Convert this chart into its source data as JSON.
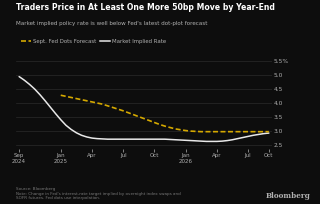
{
  "title": "Traders Price in At Least One More 50bp Move by Year-End",
  "subtitle": "Market implied policy rate is well below Fed's latest dot-plot forecast",
  "background_color": "#0d0d0d",
  "text_color": "#b0b0b0",
  "title_color": "#ffffff",
  "ylim": [
    2.35,
    5.65
  ],
  "yticks": [
    2.5,
    3.0,
    3.5,
    4.0,
    4.5,
    5.0,
    5.5
  ],
  "ytick_labels": [
    "2.5",
    "3.0",
    "3.5",
    "4.0",
    "4.5",
    "5.0",
    "5.5%"
  ],
  "source_text": "Source: Bloomberg\nNote: Change in Fed's interest-rate target implied by overnight index swaps and\nSOFR futures. Fed dots use interpolation.",
  "bloomberg_label": "Bloomberg",
  "legend_items": [
    "Sept. Fed Dots Forecast",
    "Market Implied Rate"
  ],
  "fed_dots_color": "#d4a800",
  "market_implied_color": "#e8e8e8",
  "x_tick_positions": [
    0,
    4,
    7,
    10,
    13,
    16,
    19,
    22,
    24
  ],
  "x_ticklabels": [
    "Sep\n2024",
    "Jan\n2025",
    "Apr",
    "Jul",
    "Oct",
    "Jan\n2026",
    "Apr",
    "Jul",
    "Oct"
  ],
  "market_implied_x": [
    0,
    0.5,
    1,
    1.5,
    2,
    2.5,
    3,
    3.5,
    4,
    4.5,
    5,
    5.5,
    6,
    6.5,
    7,
    7.5,
    8,
    8.5,
    9,
    9.5,
    10,
    10.5,
    11,
    11.5,
    12,
    12.5,
    13,
    13.5,
    14,
    14.5,
    15,
    15.5,
    16,
    16.5,
    17,
    17.5,
    18,
    18.5,
    19,
    19.5,
    20,
    20.5,
    21,
    21.5,
    22,
    22.5,
    23,
    23.5,
    24
  ],
  "market_implied_y": [
    4.95,
    4.82,
    4.67,
    4.5,
    4.3,
    4.08,
    3.85,
    3.62,
    3.4,
    3.2,
    3.05,
    2.93,
    2.84,
    2.78,
    2.74,
    2.72,
    2.71,
    2.7,
    2.7,
    2.7,
    2.7,
    2.7,
    2.7,
    2.7,
    2.7,
    2.7,
    2.7,
    2.7,
    2.7,
    2.69,
    2.68,
    2.67,
    2.66,
    2.65,
    2.64,
    2.63,
    2.62,
    2.62,
    2.62,
    2.63,
    2.65,
    2.68,
    2.72,
    2.76,
    2.8,
    2.84,
    2.87,
    2.9,
    2.92
  ],
  "fed_dots_x": [
    4,
    4.5,
    5,
    5.5,
    6,
    6.5,
    7,
    7.5,
    8,
    8.5,
    9,
    9.5,
    10,
    10.5,
    11,
    11.5,
    12,
    12.5,
    13,
    13.5,
    14,
    14.5,
    15,
    15.5,
    16,
    16.5,
    17,
    17.5,
    18,
    18.5,
    19,
    19.5,
    20,
    20.5,
    21,
    21.5,
    22,
    22.5,
    23,
    23.5,
    24
  ],
  "fed_dots_y": [
    4.28,
    4.24,
    4.2,
    4.16,
    4.12,
    4.08,
    4.04,
    4.0,
    3.96,
    3.9,
    3.84,
    3.78,
    3.72,
    3.65,
    3.58,
    3.51,
    3.44,
    3.37,
    3.3,
    3.23,
    3.17,
    3.12,
    3.07,
    3.04,
    3.01,
    2.99,
    2.98,
    2.97,
    2.97,
    2.97,
    2.97,
    2.97,
    2.97,
    2.97,
    2.97,
    2.97,
    2.97,
    2.97,
    2.97,
    2.97,
    2.97
  ]
}
